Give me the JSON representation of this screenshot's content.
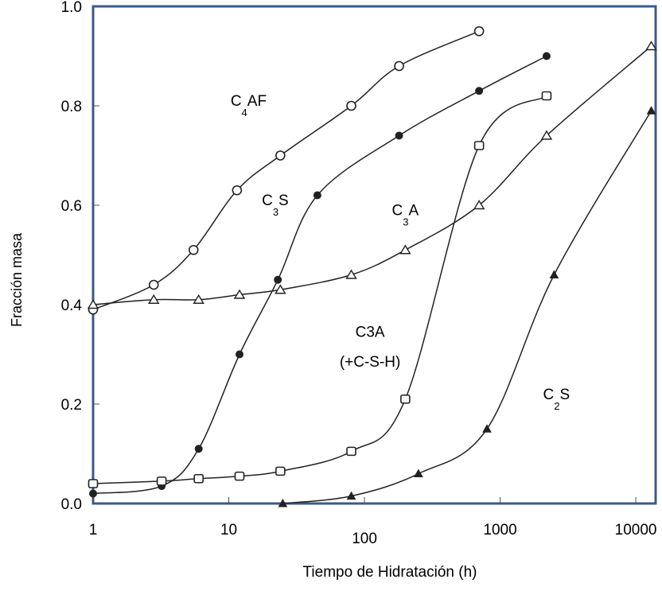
{
  "chart_data": {
    "type": "line",
    "xlabel": "Tiempo de Hidratación (h)",
    "ylabel": "Fracción masa",
    "xscale": "log",
    "xlim": [
      1,
      14000
    ],
    "ylim": [
      0,
      1.0
    ],
    "grid": false,
    "x_ticks": [
      {
        "value": 1,
        "label": "1"
      },
      {
        "value": 10,
        "label": "10"
      },
      {
        "value": 100,
        "label": "100"
      },
      {
        "value": 1000,
        "label": "1000"
      },
      {
        "value": 10000,
        "label": "10000"
      }
    ],
    "y_ticks": [
      {
        "value": 0.0,
        "label": "0.0"
      },
      {
        "value": 0.2,
        "label": "0.2"
      },
      {
        "value": 0.4,
        "label": "0.4"
      },
      {
        "value": 0.6,
        "label": "0.6"
      },
      {
        "value": 0.8,
        "label": "0.8"
      },
      {
        "value": 1.0,
        "label": "1.0"
      }
    ],
    "series": [
      {
        "name": "C4AF",
        "marker": "circle",
        "color": "#222222",
        "points": [
          [
            1,
            0.39
          ],
          [
            2.8,
            0.44
          ],
          [
            5.5,
            0.51
          ],
          [
            11.5,
            0.63
          ],
          [
            24,
            0.7
          ],
          [
            80,
            0.8
          ],
          [
            180,
            0.88
          ],
          [
            700,
            0.95
          ]
        ]
      },
      {
        "name": "C3S",
        "marker": "dot",
        "color": "#222222",
        "points": [
          [
            1,
            0.02
          ],
          [
            3.2,
            0.035
          ],
          [
            6,
            0.11
          ],
          [
            12,
            0.3
          ],
          [
            23,
            0.45
          ],
          [
            45,
            0.62
          ],
          [
            180,
            0.74
          ],
          [
            700,
            0.83
          ],
          [
            2200,
            0.9
          ]
        ]
      },
      {
        "name": "C3A",
        "marker": "triangle-open",
        "color": "#222222",
        "points": [
          [
            1,
            0.4
          ],
          [
            2.8,
            0.41
          ],
          [
            6,
            0.41
          ],
          [
            12,
            0.42
          ],
          [
            24,
            0.43
          ],
          [
            80,
            0.46
          ],
          [
            200,
            0.51
          ],
          [
            700,
            0.6
          ],
          [
            2200,
            0.74
          ],
          [
            13000,
            0.92
          ]
        ]
      },
      {
        "name": "C3A (+C-S-H)",
        "marker": "square-open",
        "color": "#222222",
        "points": [
          [
            1,
            0.04
          ],
          [
            3.2,
            0.045
          ],
          [
            6,
            0.05
          ],
          [
            12,
            0.055
          ],
          [
            24,
            0.065
          ],
          [
            80,
            0.105
          ],
          [
            200,
            0.21
          ],
          [
            700,
            0.72
          ],
          [
            2200,
            0.82
          ]
        ]
      },
      {
        "name": "C2S",
        "marker": "triangle-filled",
        "color": "#222222",
        "points": [
          [
            25,
            0.0
          ],
          [
            80,
            0.015
          ],
          [
            250,
            0.06
          ],
          [
            800,
            0.15
          ],
          [
            2500,
            0.46
          ],
          [
            13000,
            0.79
          ]
        ]
      }
    ],
    "annotations": [
      {
        "main": "C",
        "sub": "4",
        "rest": "AF",
        "x": 14,
        "y": 0.8
      },
      {
        "main": "C",
        "sub": "3",
        "rest": "S",
        "x": 22,
        "y": 0.6
      },
      {
        "main": "C",
        "sub": "3",
        "rest": "A",
        "x": 200,
        "y": 0.58
      },
      {
        "main": "C3A",
        "sub": "",
        "rest": "",
        "x": 110,
        "y": 0.335
      },
      {
        "main": "(+C-S-H)",
        "sub": "",
        "rest": "",
        "x": 110,
        "y": 0.275
      },
      {
        "main": "C",
        "sub": "2",
        "rest": "S",
        "x": 2600,
        "y": 0.21
      }
    ]
  }
}
